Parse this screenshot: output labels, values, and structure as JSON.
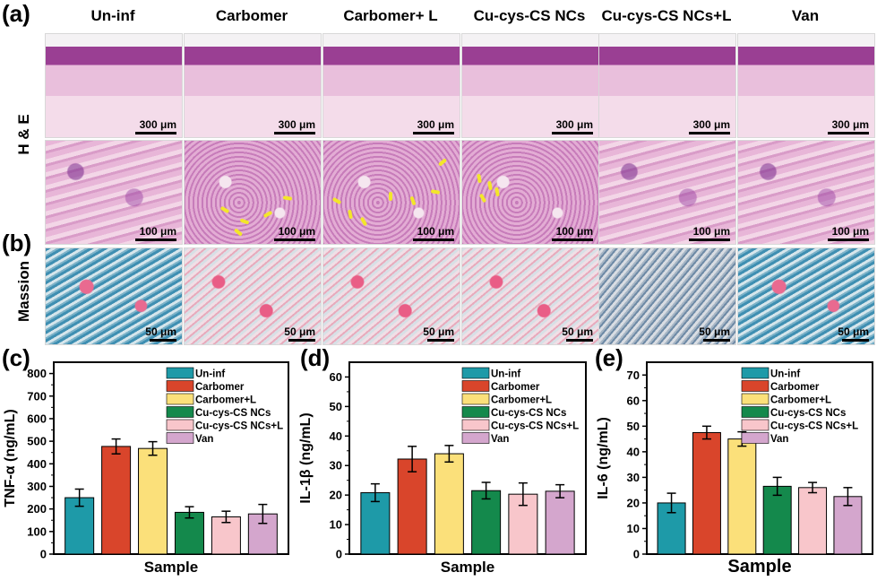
{
  "panel_labels": {
    "a": "(a)",
    "b": "(b)",
    "c": "(c)",
    "d": "(d)",
    "e": "(e)"
  },
  "column_titles": [
    "Un-inf",
    "Carbomer",
    "Carbomer+ L",
    "Cu-cys-CS NCs",
    "Cu-cys-CS NCs+L",
    "Van"
  ],
  "row_labels": {
    "he": "H & E",
    "masson": "Massion"
  },
  "scale_bars": {
    "row1": [
      "300 μm",
      "300 μm",
      "300 μm",
      "300 μm",
      "300 μm",
      "300 μm"
    ],
    "row2": [
      "100 μm",
      "100 μm",
      "100 μm",
      "100 μm",
      "100 μm",
      "100 μm"
    ],
    "row3": [
      "50 μm",
      "50 μm",
      "50 μm",
      "50 μm",
      "50 μm",
      "50 μm"
    ]
  },
  "colors": {
    "Un-inf": "#1e9aa8",
    "Carbomer": "#d9452b",
    "Carbomer+L": "#fbe07a",
    "Cu-cys-CS NCs": "#14894c",
    "Cu-cys-CS NCs+L": "#f8c6cb",
    "Van": "#d4a6cd"
  },
  "chart_data": [
    {
      "type": "bar",
      "panel": "(c)",
      "categories": [
        "Un-inf",
        "Carbomer",
        "Carbomer+L",
        "Cu-cys-CS NCs",
        "Cu-cys-CS NCs+L",
        "Van"
      ],
      "values": [
        250,
        477,
        468,
        185,
        165,
        178
      ],
      "errors": [
        38,
        33,
        30,
        25,
        25,
        42
      ],
      "xlabel": "Sample",
      "ylabel": "TNF-α (ng/mL)",
      "ylim": [
        0,
        850
      ],
      "yticks": [
        0,
        100,
        200,
        300,
        400,
        500,
        600,
        700,
        800
      ],
      "legend": [
        "Un-inf",
        "Carbomer",
        "Carbomer+L",
        "Cu-cys-CS NCs",
        "Cu-cys-CS NCs+L",
        "Van"
      ],
      "legend_position": "top-right"
    },
    {
      "type": "bar",
      "panel": "(d)",
      "categories": [
        "Un-inf",
        "Carbomer",
        "Carbomer+L",
        "Cu-cys-CS NCs",
        "Cu-cys-CS NCs+L",
        "Van"
      ],
      "values": [
        20.8,
        32.2,
        34.0,
        21.5,
        20.3,
        21.3
      ],
      "errors": [
        3.0,
        4.3,
        2.8,
        2.8,
        3.8,
        2.2
      ],
      "xlabel": "Sample",
      "ylabel": "IL-1β (ng/mL)",
      "ylim": [
        0,
        65
      ],
      "yticks": [
        0,
        10,
        20,
        30,
        40,
        50,
        60
      ],
      "legend": [
        "Un-inf",
        "Carbomer",
        "Carbomer+L",
        "Cu-cys-CS NCs",
        "Cu-cys-CS NCs+L",
        "Van"
      ],
      "legend_position": "top-right"
    },
    {
      "type": "bar",
      "panel": "(e)",
      "categories": [
        "Un-inf",
        "Carbomer",
        "Carbomer+L",
        "Cu-cys-CS NCs",
        "Cu-cys-CS NCs+L",
        "Van"
      ],
      "values": [
        20.0,
        47.5,
        45.0,
        26.5,
        26.0,
        22.5
      ],
      "errors": [
        3.8,
        2.5,
        2.8,
        3.5,
        2.0,
        3.5
      ],
      "xlabel": "Sample",
      "ylabel": "IL-6 (ng/mL)",
      "ylim": [
        0,
        75
      ],
      "yticks": [
        0,
        10,
        20,
        30,
        40,
        50,
        60,
        70
      ],
      "legend": [
        "Un-inf",
        "Carbomer",
        "Carbomer+L",
        "Cu-cys-CS NCs",
        "Cu-cys-CS NCs+L",
        "Van"
      ],
      "legend_position": "top-right"
    }
  ]
}
